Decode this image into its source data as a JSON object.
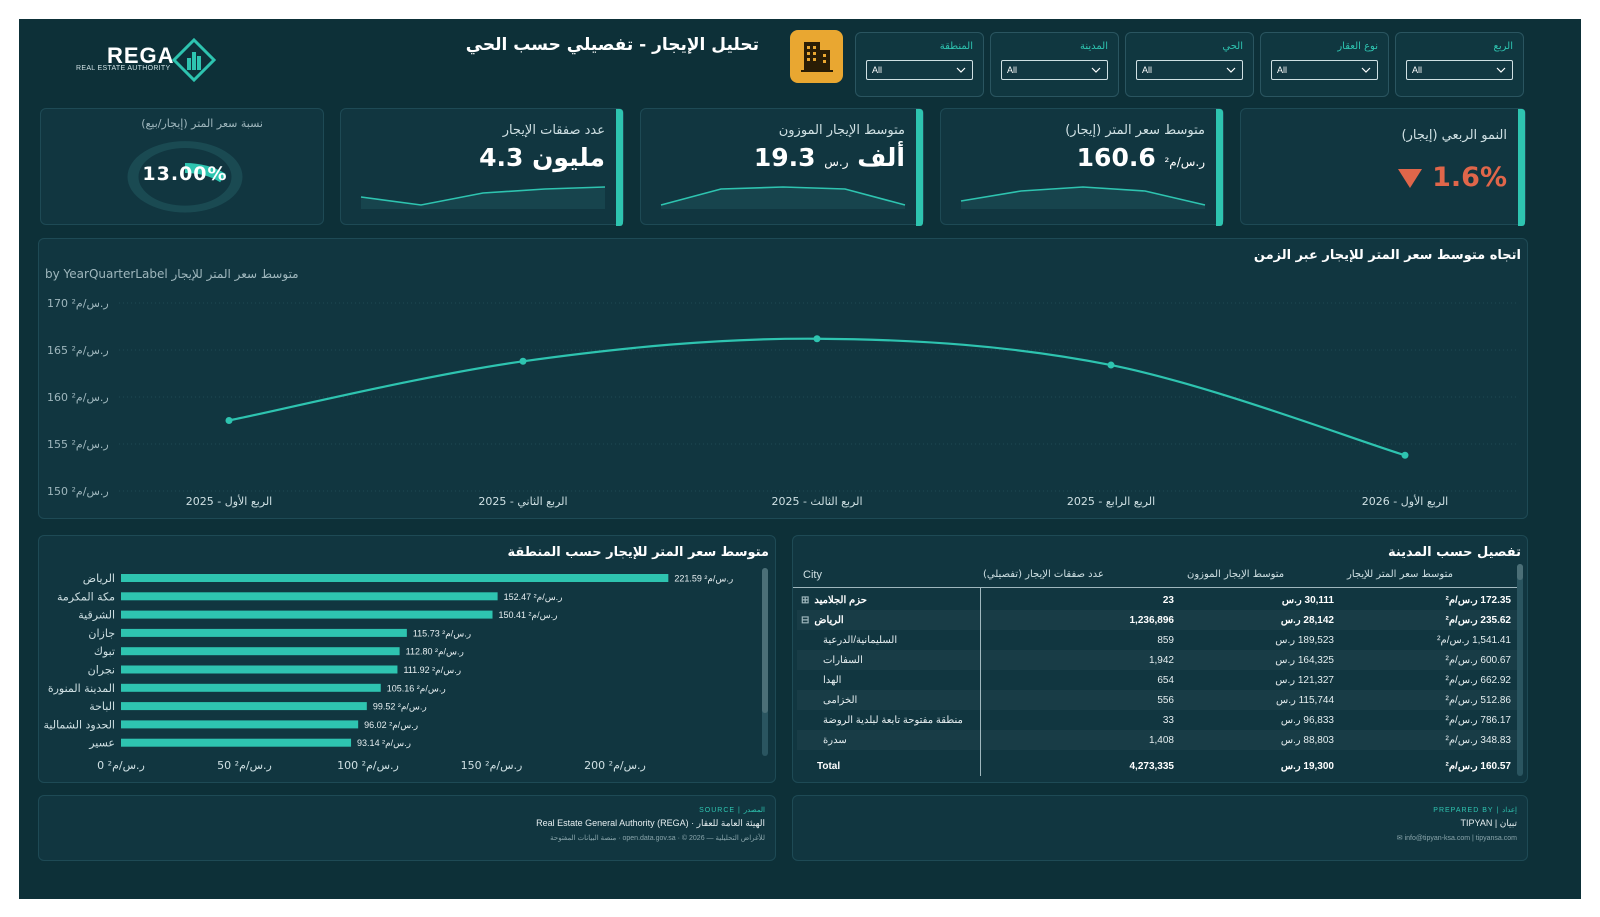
{
  "header": {
    "logo_text": "REGA",
    "logo_sub": "REAL ESTATE AUTHORITY",
    "title": "تحليل الإيجار - تفصيلي حسب الحي",
    "title_icon": "building-icon"
  },
  "slicers": [
    {
      "label": "الربع",
      "value": "All"
    },
    {
      "label": "نوع العقار",
      "value": "All"
    },
    {
      "label": "الحي",
      "value": "All"
    },
    {
      "label": "المدينة",
      "value": "All"
    },
    {
      "label": "المنطقة",
      "value": "All"
    }
  ],
  "kpis": {
    "growth": {
      "title": "النمو الربعي (إيجار)",
      "value": "1.6%",
      "direction": "down",
      "color": "#e0664a"
    },
    "avg_price": {
      "title": "متوسط سعر المتر (إيجار)",
      "value": "160.6",
      "unit": "ر.س/م²"
    },
    "weighted_rent": {
      "title": "متوسط الإيجار الموزون",
      "value": "19.3",
      "unit": "ر.س",
      "suffix": "ألف"
    },
    "deals": {
      "title": "عدد صفقات الإيجار",
      "value": "4.3",
      "suffix": "مليون"
    },
    "ratio": {
      "title": "نسبة سعر المتر (إيجار/بيع)",
      "value": "13.00%",
      "fraction": 0.13
    }
  },
  "trend": {
    "title": "اتجاه متوسط سعر المتر للإيجار عبر الزمن",
    "subtitle": "متوسط سعر المتر للإيجار by YearQuarterLabel"
  },
  "chart_data": [
    {
      "type": "line",
      "title": "اتجاه متوسط سعر المتر للإيجار عبر الزمن",
      "subtitle": "متوسط سعر المتر للإيجار by YearQuarterLabel",
      "categories": [
        "الربع الأول - 2025",
        "الربع الثاني - 2025",
        "الربع الثالث - 2025",
        "الربع الرابع - 2025",
        "الربع الأول - 2026"
      ],
      "values": [
        157.5,
        163.8,
        166.2,
        163.4,
        153.8
      ],
      "ylim": [
        150,
        170
      ],
      "yticks": [
        "150 ر.س/م²",
        "155 ر.س/م²",
        "160 ر.س/م²",
        "165 ر.س/م²",
        "170 ر.س/م²"
      ],
      "grid": true,
      "color": "#2ec4b0"
    },
    {
      "type": "bar",
      "orientation": "horizontal",
      "title": "متوسط سعر المتر للإيجار حسب المنطقة",
      "categories": [
        "الرياض",
        "مكة المكرمة",
        "الشرقية",
        "جازان",
        "تبوك",
        "نجران",
        "المدينة المنورة",
        "الباحة",
        "الحدود الشمالية",
        "عسير"
      ],
      "values": [
        221.59,
        152.47,
        150.41,
        115.73,
        112.8,
        111.92,
        105.16,
        99.52,
        96.02,
        93.14
      ],
      "labels": [
        "221.59 ر.س/م²",
        "152.47 ر.س/م²",
        "150.41 ر.س/م²",
        "115.73 ر.س/م²",
        "112.80 ر.س/م²",
        "111.92 ر.س/م²",
        "105.16 ر.س/م²",
        "99.52 ر.س/م²",
        "96.02 ر.س/م²",
        "93.14 ر.س/م²"
      ],
      "xlim": [
        0,
        240
      ],
      "xticks": [
        "0 ر.س/م²",
        "50 ر.س/م²",
        "100 ر.س/م²",
        "150 ر.س/م²",
        "200 ر.س/م²"
      ],
      "color": "#2ec4b0"
    }
  ],
  "city_table": {
    "title": "تفصيل حسب المدينة",
    "headers": [
      "City",
      "عدد صفقات الإيجار (تفصيلي)",
      "متوسط الإيجار الموزون",
      "متوسط سعر المتر للإيجار"
    ],
    "rows": [
      {
        "expand": "⊞",
        "city": "حزم الجلاميد",
        "deals": "23",
        "rent": "30,111 ر.س",
        "price": "172.35 ر.س/م²",
        "bold": true
      },
      {
        "expand": "⊟",
        "city": "الرياض",
        "deals": "1,236,896",
        "rent": "28,142 ر.س",
        "price": "235.62 ر.س/م²",
        "bold": true
      },
      {
        "expand": "",
        "city": "السليمانية/الدرعية",
        "deals": "859",
        "rent": "189,523 ر.س",
        "price": "1,541.41 ر.س/م²",
        "bold": false
      },
      {
        "expand": "",
        "city": "السفارات",
        "deals": "1,942",
        "rent": "164,325 ر.س",
        "price": "600.67 ر.س/م²",
        "bold": false
      },
      {
        "expand": "",
        "city": "الهدا",
        "deals": "654",
        "rent": "121,327 ر.س",
        "price": "662.92 ر.س/م²",
        "bold": false
      },
      {
        "expand": "",
        "city": "الخزامى",
        "deals": "556",
        "rent": "115,744 ر.س",
        "price": "512.86 ر.س/م²",
        "bold": false
      },
      {
        "expand": "",
        "city": "منطقة مفتوحة تابعة لبلدية الروضة",
        "deals": "33",
        "rent": "96,833 ر.س",
        "price": "786.17 ر.س/م²",
        "bold": false
      },
      {
        "expand": "",
        "city": "سدرة",
        "deals": "1,408",
        "rent": "88,803 ر.س",
        "price": "348.83 ر.س/م²",
        "bold": false
      }
    ],
    "total": {
      "label": "Total",
      "deals": "4,273,335",
      "rent": "19,300 ر.س",
      "price": "160.57 ر.س/م²"
    }
  },
  "footer": {
    "source_label": "SOURCE | المصدر",
    "source_text": "Real Estate General Authority (REGA) · الهيئة العامة للعقار",
    "source_small": "منصة البيانات المفتوحة · open.data.gov.sa · © 2026 — للأغراض التحليلية",
    "prepared_label": "PREPARED BY | إعداد",
    "prepared_text": "TIPYAN | تبيان",
    "prepared_small": "✉ info@tipyan-ksa.com | tipyansa.com"
  }
}
